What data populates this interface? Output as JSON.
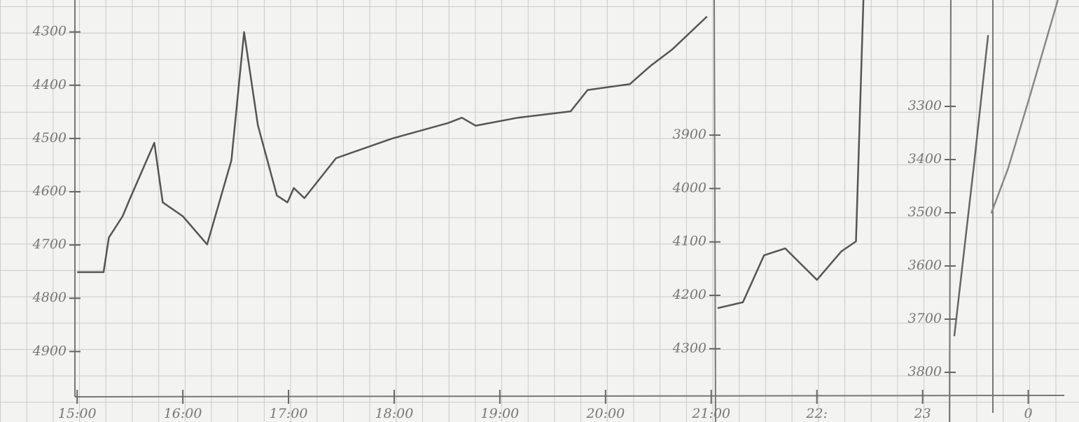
{
  "chart_data": {
    "type": "line",
    "x_label_positions": null,
    "xlim": [
      14.27,
      24.48
    ],
    "xticks": [
      {
        "value": 15,
        "label": "15:00"
      },
      {
        "value": 16,
        "label": "16:00"
      },
      {
        "value": 17,
        "label": "17:00"
      },
      {
        "value": 18,
        "label": "18:00"
      },
      {
        "value": 19,
        "label": "19:00"
      },
      {
        "value": 20,
        "label": "20:00"
      },
      {
        "value": 21,
        "label": "21:00"
      },
      {
        "value": 22,
        "label": "22:"
      },
      23,
      {
        "value": 24,
        "label": "0"
      }
    ],
    "ylim": [
      4985,
      4240
    ],
    "yticks": [
      4300,
      4400,
      4500,
      4600,
      4700,
      4800,
      4900
    ],
    "y2lim": [
      4390,
      3647
    ],
    "y2ticks": [
      3900,
      4000,
      4100,
      4200,
      4300
    ],
    "y3lim": [
      3846,
      3100
    ],
    "y3ticks": [
      3300,
      3400,
      3500,
      3600,
      3700,
      3800
    ],
    "series": [
      {
        "color": "#555555",
        "axis": "y",
        "x": [
          15.0,
          15.25,
          15.3,
          15.43,
          15.5,
          15.73,
          15.81,
          16.0,
          16.23,
          16.46,
          16.58,
          16.71,
          16.89,
          16.99,
          17.05,
          17.15,
          17.45,
          17.98,
          18.51,
          18.64,
          18.77,
          19.17,
          19.67,
          19.83,
          20.23,
          20.43,
          20.63,
          20.96
        ],
        "values": [
          4751,
          4751,
          4686,
          4646,
          4613,
          4508,
          4620,
          4646,
          4699,
          4541,
          4300,
          4475,
          4607,
          4620,
          4593,
          4612,
          4537,
          4500,
          4471,
          4461,
          4476,
          4461,
          4449,
          4409,
          4398,
          4363,
          4333,
          4271
        ]
      },
      {
        "color": "#555555",
        "axis": "y2",
        "x": [
          21.06,
          21.3,
          21.5,
          21.7,
          22.0,
          22.23,
          22.37,
          22.44
        ],
        "values": [
          4224,
          4213,
          4125,
          4112,
          4171,
          4118,
          4099,
          3647
        ]
      },
      {
        "color": "#666666",
        "axis": "y3",
        "x": [
          23.3,
          23.49,
          23.62
        ],
        "values": [
          3732,
          3403,
          3166
        ]
      },
      {
        "color": "#888888",
        "axis": "y3",
        "x": [
          23.65,
          23.81,
          24.01,
          24.28
        ],
        "values": [
          3501,
          3416,
          3284,
          3100
        ]
      }
    ]
  }
}
